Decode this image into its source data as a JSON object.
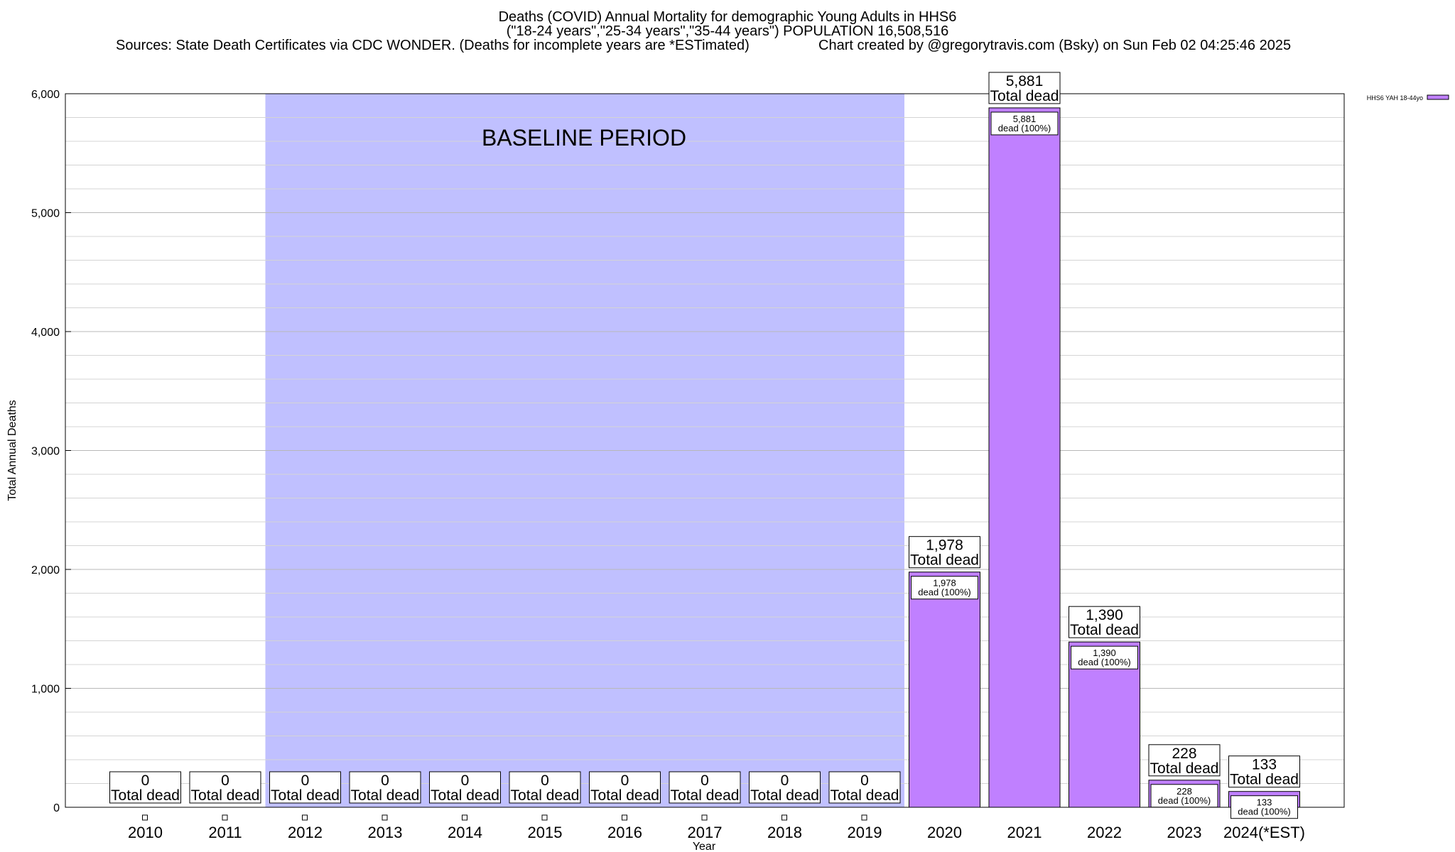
{
  "title": "Deaths (COVID) Annual Mortality for demographic Young Adults in HHS6",
  "subtitle": "(\"18-24 years\",\"25-34 years\",\"35-44 years\") POPULATION 16,508,516",
  "sources": "Sources: State Death Certificates via CDC WONDER. (Deaths for incomplete years are *ESTimated)",
  "credit": "Chart created by @gregorytravis.com (Bsky) on Sun Feb 02 04:25:46 2025",
  "colors": {
    "bar": "#c080ff",
    "baseline": "#c0c0ff"
  },
  "chart_data": {
    "type": "bar",
    "categories": [
      "2010",
      "2011",
      "2012",
      "2013",
      "2014",
      "2015",
      "2016",
      "2017",
      "2018",
      "2019",
      "2020",
      "2021",
      "2022",
      "2023",
      "2024(*EST)"
    ],
    "series": [
      {
        "name": "HHS6 YAH 18-44yo",
        "values": [
          0,
          0,
          0,
          0,
          0,
          0,
          0,
          0,
          0,
          0,
          1978,
          5881,
          1390,
          228,
          133
        ]
      }
    ],
    "total_labels": [
      "0",
      "0",
      "0",
      "0",
      "0",
      "0",
      "0",
      "0",
      "0",
      "0",
      "1,978",
      "5,881",
      "1,390",
      "228",
      "133"
    ],
    "total_suffix": "Total dead",
    "inner_labels": [
      "1,978",
      "5,881",
      "1,390",
      "228",
      "133"
    ],
    "inner_suffix": "dead (100%)",
    "ylabel": "Total Annual Deaths",
    "xlabel": "Year",
    "ylim": [
      0,
      6000
    ],
    "yticks": [
      0,
      1000,
      2000,
      3000,
      4000,
      5000,
      6000
    ],
    "ytick_labels": [
      "0",
      "1,000",
      "2,000",
      "3,000",
      "4,000",
      "5,000",
      "6,000"
    ],
    "minor_gridlines": true,
    "legend_position": "top-right",
    "annotation": "BASELINE PERIOD",
    "baseline_range": [
      "2012",
      "2019"
    ]
  }
}
